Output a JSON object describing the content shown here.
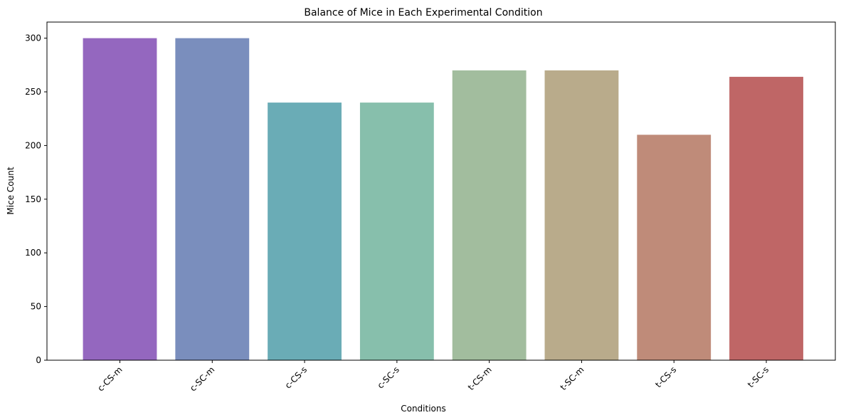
{
  "chart_data": {
    "type": "bar",
    "title": "Balance of Mice in Each Experimental Condition",
    "xlabel": "Conditions",
    "ylabel": "Mice Count",
    "categories": [
      "c-CS-m",
      "c-SC-m",
      "c-CS-s",
      "c-SC-s",
      "t-CS-m",
      "t-SC-m",
      "t-CS-s",
      "t-SC-s"
    ],
    "values": [
      300,
      300,
      240,
      240,
      270,
      270,
      210,
      264
    ],
    "colors": [
      "#9467bf",
      "#7a8ebd",
      "#6aacb6",
      "#87bfac",
      "#a2bd9e",
      "#b9ab8b",
      "#bf8b79",
      "#bf6666"
    ],
    "ylim": [
      0,
      315
    ],
    "yticks": [
      0,
      50,
      100,
      150,
      200,
      250,
      300
    ],
    "grid": false,
    "legend": "none"
  }
}
